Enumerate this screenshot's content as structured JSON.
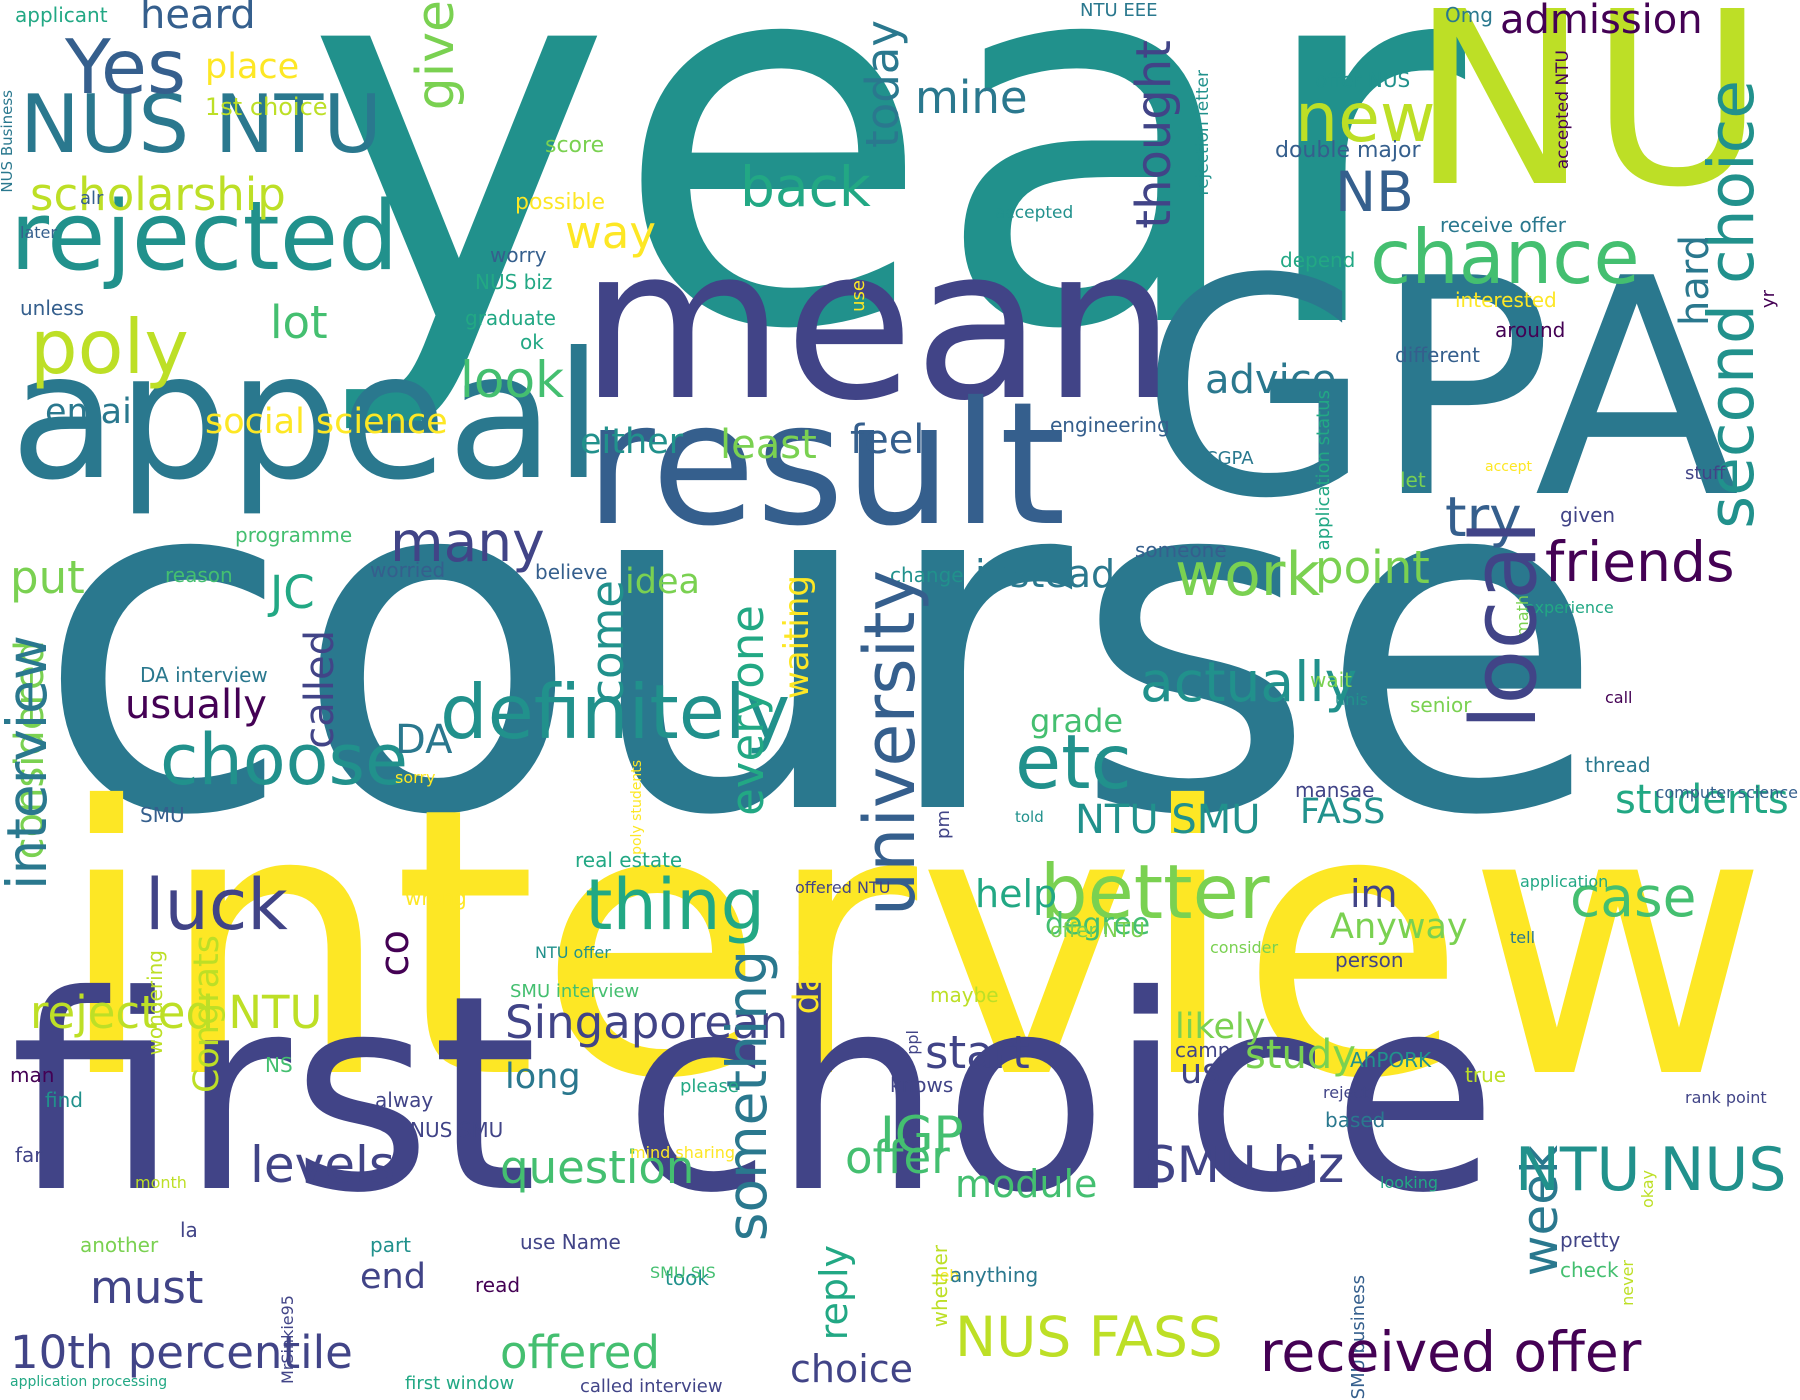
{
  "palette": {
    "dark_purple": "#440154",
    "indigo": "#414487",
    "blue": "#355f8d",
    "steel_blue": "#2a788e",
    "teal": "#21918c",
    "sea_green": "#22a884",
    "green": "#44bf70",
    "light_green": "#7ad151",
    "lime": "#bddf26",
    "yellow": "#fde725",
    "background": "#ffffff"
  },
  "words": [
    {
      "text": "year",
      "color": "teal"
    },
    {
      "text": "course",
      "color": "steel_blue"
    },
    {
      "text": "interview",
      "color": "yellow"
    },
    {
      "text": "first choice",
      "color": "indigo"
    },
    {
      "text": "GPA",
      "color": "steel_blue"
    },
    {
      "text": "mean",
      "color": "indigo"
    },
    {
      "text": "NU",
      "color": "lime"
    },
    {
      "text": "appeal",
      "color": "steel_blue"
    },
    {
      "text": "result",
      "color": "blue"
    },
    {
      "text": "rejected",
      "color": "teal"
    },
    {
      "text": "NUS NTU",
      "color": "steel_blue"
    },
    {
      "text": "Yes",
      "color": "blue"
    },
    {
      "text": "scholarship",
      "color": "lime"
    },
    {
      "text": "poly",
      "color": "lime"
    },
    {
      "text": "heard",
      "color": "blue"
    },
    {
      "text": "place",
      "color": "yellow"
    },
    {
      "text": "1st choice",
      "color": "lime"
    },
    {
      "text": "applicant",
      "color": "sea_green"
    },
    {
      "text": "NUS Business",
      "color": "steel_blue"
    },
    {
      "text": "score",
      "color": "light_green"
    },
    {
      "text": "alr",
      "color": "blue"
    },
    {
      "text": "later",
      "color": "blue"
    },
    {
      "text": "unless",
      "color": "blue"
    },
    {
      "text": "possible",
      "color": "yellow"
    },
    {
      "text": "worry",
      "color": "blue"
    },
    {
      "text": "NUS biz",
      "color": "sea_green"
    },
    {
      "text": "graduate",
      "color": "sea_green"
    },
    {
      "text": "ok",
      "color": "sea_green"
    },
    {
      "text": "give",
      "color": "light_green"
    },
    {
      "text": "today",
      "color": "steel_blue"
    },
    {
      "text": "mine",
      "color": "steel_blue"
    },
    {
      "text": "back",
      "color": "sea_green"
    },
    {
      "text": "way",
      "color": "yellow"
    },
    {
      "text": "lot",
      "color": "green"
    },
    {
      "text": "look",
      "color": "green"
    },
    {
      "text": "email",
      "color": "steel_blue"
    },
    {
      "text": "social science",
      "color": "yellow"
    },
    {
      "text": "either",
      "color": "teal"
    },
    {
      "text": "least",
      "color": "light_green"
    },
    {
      "text": "feel",
      "color": "blue"
    },
    {
      "text": "many",
      "color": "indigo"
    },
    {
      "text": "programme",
      "color": "green"
    },
    {
      "text": "reason",
      "color": "green"
    },
    {
      "text": "worried",
      "color": "blue"
    },
    {
      "text": "believe",
      "color": "blue"
    },
    {
      "text": "put",
      "color": "light_green"
    },
    {
      "text": "JC",
      "color": "sea_green"
    },
    {
      "text": "idea",
      "color": "light_green"
    },
    {
      "text": "thought",
      "color": "indigo"
    },
    {
      "text": "NB",
      "color": "blue"
    },
    {
      "text": "new",
      "color": "lime"
    },
    {
      "text": "chance",
      "color": "green"
    },
    {
      "text": "advice",
      "color": "steel_blue"
    },
    {
      "text": "try",
      "color": "blue"
    },
    {
      "text": "work",
      "color": "light_green"
    },
    {
      "text": "point",
      "color": "light_green"
    },
    {
      "text": "friends",
      "color": "dark_purple"
    },
    {
      "text": "instead",
      "color": "steel_blue"
    },
    {
      "text": "change",
      "color": "teal"
    },
    {
      "text": "admission",
      "color": "dark_purple"
    },
    {
      "text": "NTU EEE",
      "color": "steel_blue"
    },
    {
      "text": "Omg",
      "color": "steel_blue"
    },
    {
      "text": "offer NUS",
      "color": "teal"
    },
    {
      "text": "double major",
      "color": "blue"
    },
    {
      "text": "rejection letter",
      "color": "teal"
    },
    {
      "text": "accepted NTU",
      "color": "dark_purple"
    },
    {
      "text": "receive offer",
      "color": "steel_blue"
    },
    {
      "text": "second choice",
      "color": "teal"
    },
    {
      "text": "accepted",
      "color": "teal"
    },
    {
      "text": "depend",
      "color": "sea_green"
    },
    {
      "text": "use",
      "color": "yellow"
    },
    {
      "text": "interested",
      "color": "yellow"
    },
    {
      "text": "around",
      "color": "dark_purple"
    },
    {
      "text": "hard",
      "color": "steel_blue"
    },
    {
      "text": "different",
      "color": "blue"
    },
    {
      "text": "yr",
      "color": "dark_purple"
    },
    {
      "text": "application status",
      "color": "sea_green"
    },
    {
      "text": "engineering",
      "color": "blue"
    },
    {
      "text": "CGPA",
      "color": "steel_blue"
    },
    {
      "text": "let",
      "color": "light_green"
    },
    {
      "text": "accept",
      "color": "yellow"
    },
    {
      "text": "stuff",
      "color": "indigo"
    },
    {
      "text": "given",
      "color": "indigo"
    },
    {
      "text": "someone",
      "color": "blue"
    },
    {
      "text": "experience",
      "color": "sea_green"
    },
    {
      "text": "math",
      "color": "light_green"
    },
    {
      "text": "considered",
      "color": "light_green"
    },
    {
      "text": "interview",
      "color": "steel_blue"
    },
    {
      "text": "DA interview",
      "color": "steel_blue"
    },
    {
      "text": "usually",
      "color": "dark_purple"
    },
    {
      "text": "choose",
      "color": "teal"
    },
    {
      "text": "SMU",
      "color": "blue"
    },
    {
      "text": "called",
      "color": "indigo"
    },
    {
      "text": "definitely",
      "color": "teal"
    },
    {
      "text": "DA",
      "color": "steel_blue"
    },
    {
      "text": "come",
      "color": "teal"
    },
    {
      "text": "everyone",
      "color": "sea_green"
    },
    {
      "text": "waiting",
      "color": "yellow"
    },
    {
      "text": "university",
      "color": "blue"
    },
    {
      "text": "actually",
      "color": "teal"
    },
    {
      "text": "etc",
      "color": "teal"
    },
    {
      "text": "grade",
      "color": "green"
    },
    {
      "text": "NTU SMU",
      "color": "teal"
    },
    {
      "text": "local",
      "color": "indigo"
    },
    {
      "text": "students",
      "color": "sea_green"
    },
    {
      "text": "FASS",
      "color": "teal"
    },
    {
      "text": "wait",
      "color": "light_green"
    },
    {
      "text": "unis",
      "color": "teal"
    },
    {
      "text": "senior",
      "color": "light_green"
    },
    {
      "text": "call",
      "color": "dark_purple"
    },
    {
      "text": "thread",
      "color": "steel_blue"
    },
    {
      "text": "computer science",
      "color": "blue"
    },
    {
      "text": "sorry",
      "color": "yellow"
    },
    {
      "text": "poly students",
      "color": "yellow"
    },
    {
      "text": "mansae",
      "color": "indigo"
    },
    {
      "text": "told",
      "color": "teal"
    },
    {
      "text": "pm",
      "color": "indigo"
    },
    {
      "text": "luck",
      "color": "indigo"
    },
    {
      "text": "thing",
      "color": "sea_green"
    },
    {
      "text": "better",
      "color": "light_green"
    },
    {
      "text": "help",
      "color": "sea_green"
    },
    {
      "text": "im",
      "color": "indigo"
    },
    {
      "text": "case",
      "color": "green"
    },
    {
      "text": "Anyway",
      "color": "light_green"
    },
    {
      "text": "degree",
      "color": "green"
    },
    {
      "text": "offer NTU",
      "color": "light_green"
    },
    {
      "text": "application",
      "color": "sea_green"
    },
    {
      "text": "tell",
      "color": "steel_blue"
    },
    {
      "text": "person",
      "color": "indigo"
    },
    {
      "text": "consider",
      "color": "light_green"
    },
    {
      "text": "offered NTU",
      "color": "indigo"
    },
    {
      "text": "NTU offer",
      "color": "teal"
    },
    {
      "text": "real estate",
      "color": "sea_green"
    },
    {
      "text": "wrong",
      "color": "yellow"
    },
    {
      "text": "rejected NTU",
      "color": "lime"
    },
    {
      "text": "co",
      "color": "dark_purple"
    },
    {
      "text": "Congrats",
      "color": "lime"
    },
    {
      "text": "wondering",
      "color": "lime"
    },
    {
      "text": "SMU interview",
      "color": "green"
    },
    {
      "text": "Singaporean",
      "color": "indigo"
    },
    {
      "text": "long",
      "color": "steel_blue"
    },
    {
      "text": "start",
      "color": "indigo"
    },
    {
      "text": "day",
      "color": "yellow"
    },
    {
      "text": "something",
      "color": "steel_blue"
    },
    {
      "text": "maybe",
      "color": "lime"
    },
    {
      "text": "ppl",
      "color": "indigo"
    },
    {
      "text": "knows",
      "color": "indigo"
    },
    {
      "text": "please",
      "color": "sea_green"
    },
    {
      "text": "likely",
      "color": "light_green"
    },
    {
      "text": "study",
      "color": "light_green"
    },
    {
      "text": "us",
      "color": "indigo"
    },
    {
      "text": "camp",
      "color": "indigo"
    },
    {
      "text": "AhPORK",
      "color": "teal"
    },
    {
      "text": "reject",
      "color": "indigo"
    },
    {
      "text": "based",
      "color": "steel_blue"
    },
    {
      "text": "true",
      "color": "lime"
    },
    {
      "text": "rank point",
      "color": "indigo"
    },
    {
      "text": "man",
      "color": "dark_purple"
    },
    {
      "text": "find",
      "color": "teal"
    },
    {
      "text": "NS",
      "color": "green"
    },
    {
      "text": "alway",
      "color": "indigo"
    },
    {
      "text": "NUS SMU",
      "color": "indigo"
    },
    {
      "text": "levels",
      "color": "indigo"
    },
    {
      "text": "question",
      "color": "green"
    },
    {
      "text": "IGP",
      "color": "green"
    },
    {
      "text": "offer",
      "color": "green"
    },
    {
      "text": "SMU biz",
      "color": "indigo"
    },
    {
      "text": "module",
      "color": "green"
    },
    {
      "text": "week",
      "color": "steel_blue"
    },
    {
      "text": "NTU NUS",
      "color": "teal"
    },
    {
      "text": "mind sharing",
      "color": "yellow"
    },
    {
      "text": "far",
      "color": "indigo"
    },
    {
      "text": "month",
      "color": "lime"
    },
    {
      "text": "another",
      "color": "light_green"
    },
    {
      "text": "la",
      "color": "indigo"
    },
    {
      "text": "must",
      "color": "indigo"
    },
    {
      "text": "part",
      "color": "teal"
    },
    {
      "text": "end",
      "color": "indigo"
    },
    {
      "text": "MrSinkie95",
      "color": "indigo"
    },
    {
      "text": "use Name",
      "color": "indigo"
    },
    {
      "text": "read",
      "color": "dark_purple"
    },
    {
      "text": "took",
      "color": "teal"
    },
    {
      "text": "reply",
      "color": "sea_green"
    },
    {
      "text": "SMU SIS",
      "color": "green"
    },
    {
      "text": "leh",
      "color": "yellow"
    },
    {
      "text": "whether",
      "color": "lime"
    },
    {
      "text": "anything",
      "color": "steel_blue"
    },
    {
      "text": "SMU business",
      "color": "blue"
    },
    {
      "text": "looking",
      "color": "sea_green"
    },
    {
      "text": "okay",
      "color": "lime"
    },
    {
      "text": "never",
      "color": "lime"
    },
    {
      "text": "pretty",
      "color": "indigo"
    },
    {
      "text": "check",
      "color": "green"
    },
    {
      "text": "10th percentile",
      "color": "indigo"
    },
    {
      "text": "offered",
      "color": "green"
    },
    {
      "text": "choice",
      "color": "indigo"
    },
    {
      "text": "NUS FASS",
      "color": "lime"
    },
    {
      "text": "received offer",
      "color": "dark_purple"
    },
    {
      "text": "application processing",
      "color": "sea_green"
    },
    {
      "text": "first window",
      "color": "sea_green"
    },
    {
      "text": "called interview",
      "color": "indigo"
    }
  ]
}
